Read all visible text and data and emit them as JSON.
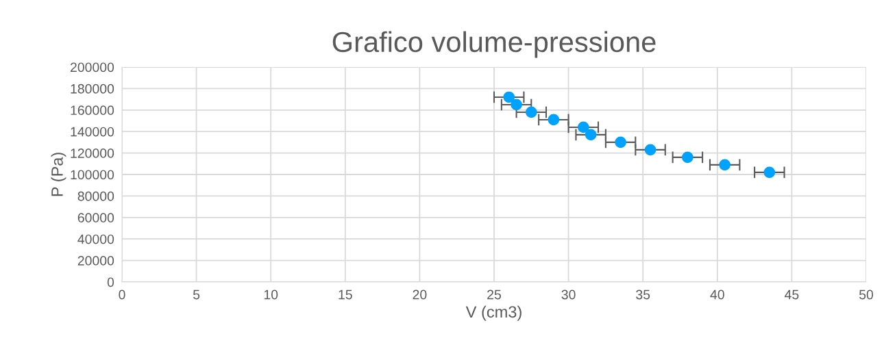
{
  "chart_data": {
    "type": "scatter",
    "title": "Grafico volume-pressione",
    "xlabel": "V (cm3)",
    "ylabel": "P (Pa)",
    "x": [
      26,
      26.5,
      27.5,
      29,
      31,
      31.5,
      33.5,
      35.5,
      38,
      40.5,
      43.5
    ],
    "series": [
      {
        "color": "#00a2ff",
        "values": [
          172000,
          165000,
          158000,
          151000,
          144000,
          137000,
          130000,
          123000,
          116000,
          109000,
          102000
        ],
        "xerrors": [
          1,
          1,
          1,
          1,
          1,
          1,
          1,
          1,
          1,
          1,
          1
        ]
      }
    ],
    "xlim": [
      0,
      50
    ],
    "xticks": [
      0,
      5,
      10,
      15,
      20,
      25,
      30,
      35,
      40,
      45,
      50
    ],
    "ylim": [
      0,
      200000
    ],
    "yticks": [
      0,
      20000,
      40000,
      60000,
      80000,
      100000,
      120000,
      140000,
      160000,
      180000,
      200000
    ],
    "grid": true,
    "marker": "circle",
    "legend": false
  }
}
